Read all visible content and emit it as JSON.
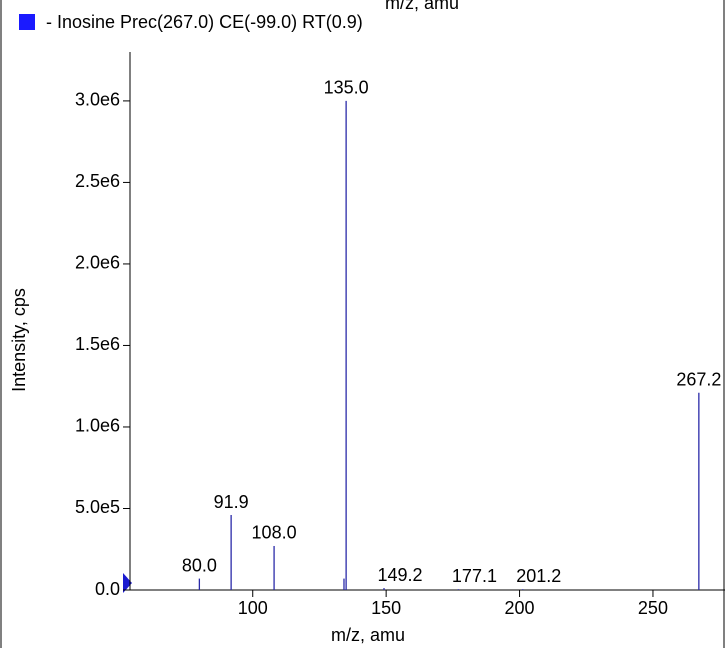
{
  "chart_data": {
    "type": "spectrum",
    "clipped_top_text": "m/z, amu",
    "legend": "- Inosine Prec(267.0) CE(-99.0) RT(0.9)",
    "legend_color": "#1a1aff",
    "xlabel": "m/z, amu",
    "ylabel": "Intensity, cps",
    "color": "#2a2aa8",
    "x": [
      80.0,
      91.9,
      108.0,
      134.2,
      135.0,
      149.2,
      177.1,
      201.2,
      267.2
    ],
    "labels": [
      "80.0",
      "91.9",
      "108.0",
      null,
      "135.0",
      "149.2",
      "177.1",
      "201.2",
      "267.2"
    ],
    "values": [
      70000,
      460000,
      270000,
      70000,
      3000000,
      12000,
      5000,
      5000,
      1210000
    ],
    "xlim": [
      54,
      277
    ],
    "ylim": [
      0,
      3300000
    ],
    "xticks": [
      100,
      150,
      200,
      250
    ],
    "yticks": [
      {
        "value": 0,
        "label": "0.0"
      },
      {
        "value": 500000,
        "label": "5.0e5"
      },
      {
        "value": 1000000,
        "label": "1.0e6"
      },
      {
        "value": 1500000,
        "label": "1.5e6"
      },
      {
        "value": 2000000,
        "label": "2.0e6"
      },
      {
        "value": 2500000,
        "label": "2.5e6"
      },
      {
        "value": 3000000,
        "label": "3.0e6"
      }
    ]
  }
}
